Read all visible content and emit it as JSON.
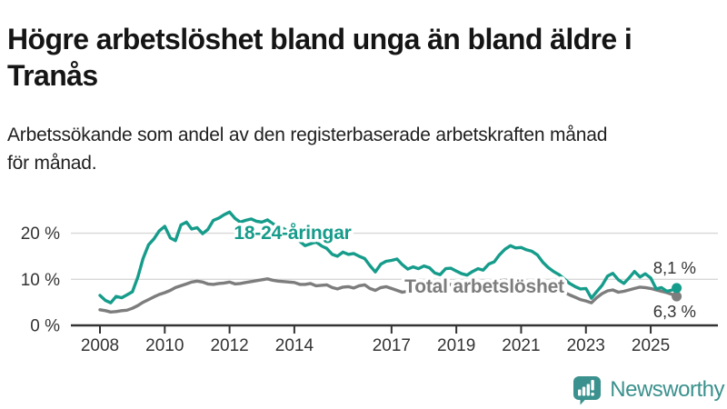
{
  "header": {
    "title": "Högre arbetslöshet bland unga än bland äldre i\nTranås",
    "subtitle": "Arbetssökande som andel av den registerbaserade arbetskraften månad\nför månad."
  },
  "chart_data": {
    "type": "line",
    "x_unit": "decimal_year",
    "xlim": [
      2007.1,
      2026.3
    ],
    "ylim": [
      0,
      27
    ],
    "grid": "horizontal",
    "x_ticks": [
      2008,
      2010,
      2012,
      2014,
      2017,
      2019,
      2021,
      2023,
      2025
    ],
    "x_tick_labels": [
      "2008",
      "2010",
      "2012",
      "2014",
      "2017",
      "2019",
      "2021",
      "2023",
      "2025"
    ],
    "y_ticks": [
      {
        "value": 0,
        "label": "0 %"
      },
      {
        "value": 10,
        "label": "10 %"
      },
      {
        "value": 20,
        "label": "20 %"
      }
    ],
    "series": [
      {
        "name": "18-24-åringar",
        "label_text": "18-24-åringar",
        "end_label": "8,1 %",
        "end_value": 8.1,
        "color": "#169c8b",
        "points": [
          [
            2008.0,
            6.5
          ],
          [
            2008.17,
            5.4
          ],
          [
            2008.33,
            4.9
          ],
          [
            2008.5,
            6.3
          ],
          [
            2008.67,
            6.0
          ],
          [
            2008.83,
            6.6
          ],
          [
            2009.0,
            7.3
          ],
          [
            2009.17,
            10.5
          ],
          [
            2009.33,
            14.5
          ],
          [
            2009.5,
            17.5
          ],
          [
            2009.67,
            18.8
          ],
          [
            2009.83,
            20.5
          ],
          [
            2010.0,
            21.5
          ],
          [
            2010.17,
            19.0
          ],
          [
            2010.33,
            18.4
          ],
          [
            2010.5,
            21.8
          ],
          [
            2010.67,
            22.4
          ],
          [
            2010.83,
            20.9
          ],
          [
            2011.0,
            21.2
          ],
          [
            2011.17,
            19.9
          ],
          [
            2011.33,
            20.8
          ],
          [
            2011.5,
            22.8
          ],
          [
            2011.67,
            23.3
          ],
          [
            2011.83,
            24.0
          ],
          [
            2012.0,
            24.6
          ],
          [
            2012.17,
            23.2
          ],
          [
            2012.33,
            22.4
          ],
          [
            2012.5,
            22.8
          ],
          [
            2012.67,
            23.1
          ],
          [
            2012.83,
            22.6
          ],
          [
            2013.0,
            22.4
          ],
          [
            2013.17,
            22.9
          ],
          [
            2013.33,
            22.1
          ],
          [
            2013.5,
            21.5
          ],
          [
            2013.67,
            21.0
          ],
          [
            2013.83,
            20.3
          ],
          [
            2014.0,
            19.9
          ],
          [
            2014.17,
            18.2
          ],
          [
            2014.33,
            17.3
          ],
          [
            2014.5,
            17.7
          ],
          [
            2014.67,
            18.1
          ],
          [
            2014.83,
            17.3
          ],
          [
            2015.0,
            16.7
          ],
          [
            2015.17,
            15.4
          ],
          [
            2015.33,
            15.0
          ],
          [
            2015.5,
            15.9
          ],
          [
            2015.67,
            15.4
          ],
          [
            2015.83,
            15.6
          ],
          [
            2016.0,
            15.0
          ],
          [
            2016.17,
            14.5
          ],
          [
            2016.33,
            13.0
          ],
          [
            2016.5,
            11.6
          ],
          [
            2016.67,
            13.3
          ],
          [
            2016.83,
            13.9
          ],
          [
            2017.0,
            14.1
          ],
          [
            2017.17,
            14.4
          ],
          [
            2017.33,
            13.2
          ],
          [
            2017.5,
            12.2
          ],
          [
            2017.67,
            12.7
          ],
          [
            2017.83,
            12.3
          ],
          [
            2018.0,
            12.9
          ],
          [
            2018.17,
            12.5
          ],
          [
            2018.33,
            11.4
          ],
          [
            2018.5,
            11.0
          ],
          [
            2018.67,
            12.3
          ],
          [
            2018.83,
            12.4
          ],
          [
            2019.0,
            11.8
          ],
          [
            2019.17,
            11.2
          ],
          [
            2019.33,
            10.9
          ],
          [
            2019.5,
            11.7
          ],
          [
            2019.67,
            12.3
          ],
          [
            2019.83,
            12.0
          ],
          [
            2020.0,
            13.3
          ],
          [
            2020.17,
            13.8
          ],
          [
            2020.33,
            15.3
          ],
          [
            2020.5,
            16.5
          ],
          [
            2020.67,
            17.3
          ],
          [
            2020.83,
            16.8
          ],
          [
            2021.0,
            16.9
          ],
          [
            2021.17,
            16.4
          ],
          [
            2021.33,
            16.1
          ],
          [
            2021.5,
            15.3
          ],
          [
            2021.67,
            13.7
          ],
          [
            2021.83,
            12.6
          ],
          [
            2022.0,
            11.7
          ],
          [
            2022.17,
            11.0
          ],
          [
            2022.33,
            10.1
          ],
          [
            2022.5,
            9.1
          ],
          [
            2022.67,
            8.4
          ],
          [
            2022.83,
            7.9
          ],
          [
            2023.0,
            8.0
          ],
          [
            2023.17,
            5.9
          ],
          [
            2023.33,
            7.3
          ],
          [
            2023.5,
            8.7
          ],
          [
            2023.67,
            10.7
          ],
          [
            2023.83,
            11.3
          ],
          [
            2024.0,
            9.9
          ],
          [
            2024.17,
            9.1
          ],
          [
            2024.33,
            10.3
          ],
          [
            2024.5,
            11.7
          ],
          [
            2024.67,
            10.5
          ],
          [
            2024.83,
            11.2
          ],
          [
            2025.0,
            10.3
          ],
          [
            2025.17,
            7.9
          ],
          [
            2025.33,
            8.2
          ],
          [
            2025.5,
            7.4
          ],
          [
            2025.67,
            7.7
          ],
          [
            2025.8,
            8.1
          ]
        ]
      },
      {
        "name": "Total arbetslöshet",
        "label_text": "Total arbetslöshet",
        "end_label": "6,3 %",
        "end_value": 6.3,
        "color": "#7d7d7d",
        "points": [
          [
            2008.0,
            3.4
          ],
          [
            2008.17,
            3.2
          ],
          [
            2008.33,
            2.9
          ],
          [
            2008.5,
            3.0
          ],
          [
            2008.67,
            3.2
          ],
          [
            2008.83,
            3.3
          ],
          [
            2009.0,
            3.7
          ],
          [
            2009.17,
            4.3
          ],
          [
            2009.33,
            5.0
          ],
          [
            2009.5,
            5.6
          ],
          [
            2009.67,
            6.2
          ],
          [
            2009.83,
            6.7
          ],
          [
            2010.0,
            7.1
          ],
          [
            2010.17,
            7.6
          ],
          [
            2010.33,
            8.2
          ],
          [
            2010.5,
            8.6
          ],
          [
            2010.67,
            9.0
          ],
          [
            2010.83,
            9.4
          ],
          [
            2011.0,
            9.6
          ],
          [
            2011.17,
            9.4
          ],
          [
            2011.33,
            9.0
          ],
          [
            2011.5,
            8.9
          ],
          [
            2011.67,
            9.1
          ],
          [
            2011.83,
            9.2
          ],
          [
            2012.0,
            9.4
          ],
          [
            2012.17,
            9.0
          ],
          [
            2012.33,
            9.1
          ],
          [
            2012.5,
            9.3
          ],
          [
            2012.67,
            9.5
          ],
          [
            2012.83,
            9.7
          ],
          [
            2013.0,
            9.9
          ],
          [
            2013.17,
            10.1
          ],
          [
            2013.33,
            9.8
          ],
          [
            2013.5,
            9.6
          ],
          [
            2013.67,
            9.5
          ],
          [
            2013.83,
            9.4
          ],
          [
            2014.0,
            9.3
          ],
          [
            2014.17,
            8.9
          ],
          [
            2014.33,
            8.9
          ],
          [
            2014.5,
            9.1
          ],
          [
            2014.67,
            8.6
          ],
          [
            2014.83,
            8.7
          ],
          [
            2015.0,
            8.8
          ],
          [
            2015.17,
            8.2
          ],
          [
            2015.33,
            7.9
          ],
          [
            2015.5,
            8.3
          ],
          [
            2015.67,
            8.4
          ],
          [
            2015.83,
            8.1
          ],
          [
            2016.0,
            8.6
          ],
          [
            2016.17,
            8.8
          ],
          [
            2016.33,
            8.0
          ],
          [
            2016.5,
            7.6
          ],
          [
            2016.67,
            8.2
          ],
          [
            2016.83,
            8.4
          ],
          [
            2017.0,
            8.0
          ],
          [
            2017.17,
            7.6
          ],
          [
            2017.33,
            7.2
          ],
          [
            2017.5,
            7.4
          ],
          [
            2017.67,
            7.9
          ],
          [
            2017.83,
            8.3
          ],
          [
            2018.0,
            8.7
          ],
          [
            2018.17,
            8.9
          ],
          [
            2018.33,
            9.1
          ],
          [
            2018.5,
            8.9
          ],
          [
            2018.67,
            8.8
          ],
          [
            2018.83,
            8.9
          ],
          [
            2019.0,
            9.0
          ],
          [
            2019.17,
            9.1
          ],
          [
            2019.33,
            9.2
          ],
          [
            2019.5,
            9.1
          ],
          [
            2019.67,
            9.0
          ],
          [
            2019.83,
            9.0
          ],
          [
            2020.0,
            9.1
          ],
          [
            2020.17,
            9.4
          ],
          [
            2020.33,
            9.7
          ],
          [
            2020.5,
            9.8
          ],
          [
            2020.67,
            9.7
          ],
          [
            2020.83,
            9.6
          ],
          [
            2021.0,
            9.5
          ],
          [
            2021.17,
            9.4
          ],
          [
            2021.33,
            9.2
          ],
          [
            2021.5,
            9.0
          ],
          [
            2021.67,
            8.8
          ],
          [
            2021.83,
            8.6
          ],
          [
            2022.0,
            8.3
          ],
          [
            2022.17,
            7.8
          ],
          [
            2022.33,
            7.2
          ],
          [
            2022.5,
            6.6
          ],
          [
            2022.67,
            6.1
          ],
          [
            2022.83,
            5.6
          ],
          [
            2023.0,
            5.3
          ],
          [
            2023.17,
            4.9
          ],
          [
            2023.33,
            6.0
          ],
          [
            2023.5,
            6.9
          ],
          [
            2023.67,
            7.5
          ],
          [
            2023.83,
            7.7
          ],
          [
            2024.0,
            7.2
          ],
          [
            2024.17,
            7.4
          ],
          [
            2024.33,
            7.7
          ],
          [
            2024.5,
            8.0
          ],
          [
            2024.67,
            8.3
          ],
          [
            2024.83,
            8.2
          ],
          [
            2025.0,
            8.0
          ],
          [
            2025.17,
            7.7
          ],
          [
            2025.33,
            7.4
          ],
          [
            2025.5,
            7.1
          ],
          [
            2025.67,
            6.7
          ],
          [
            2025.8,
            6.3
          ]
        ]
      }
    ]
  },
  "branding": {
    "logo_text": "Newsworthy"
  }
}
